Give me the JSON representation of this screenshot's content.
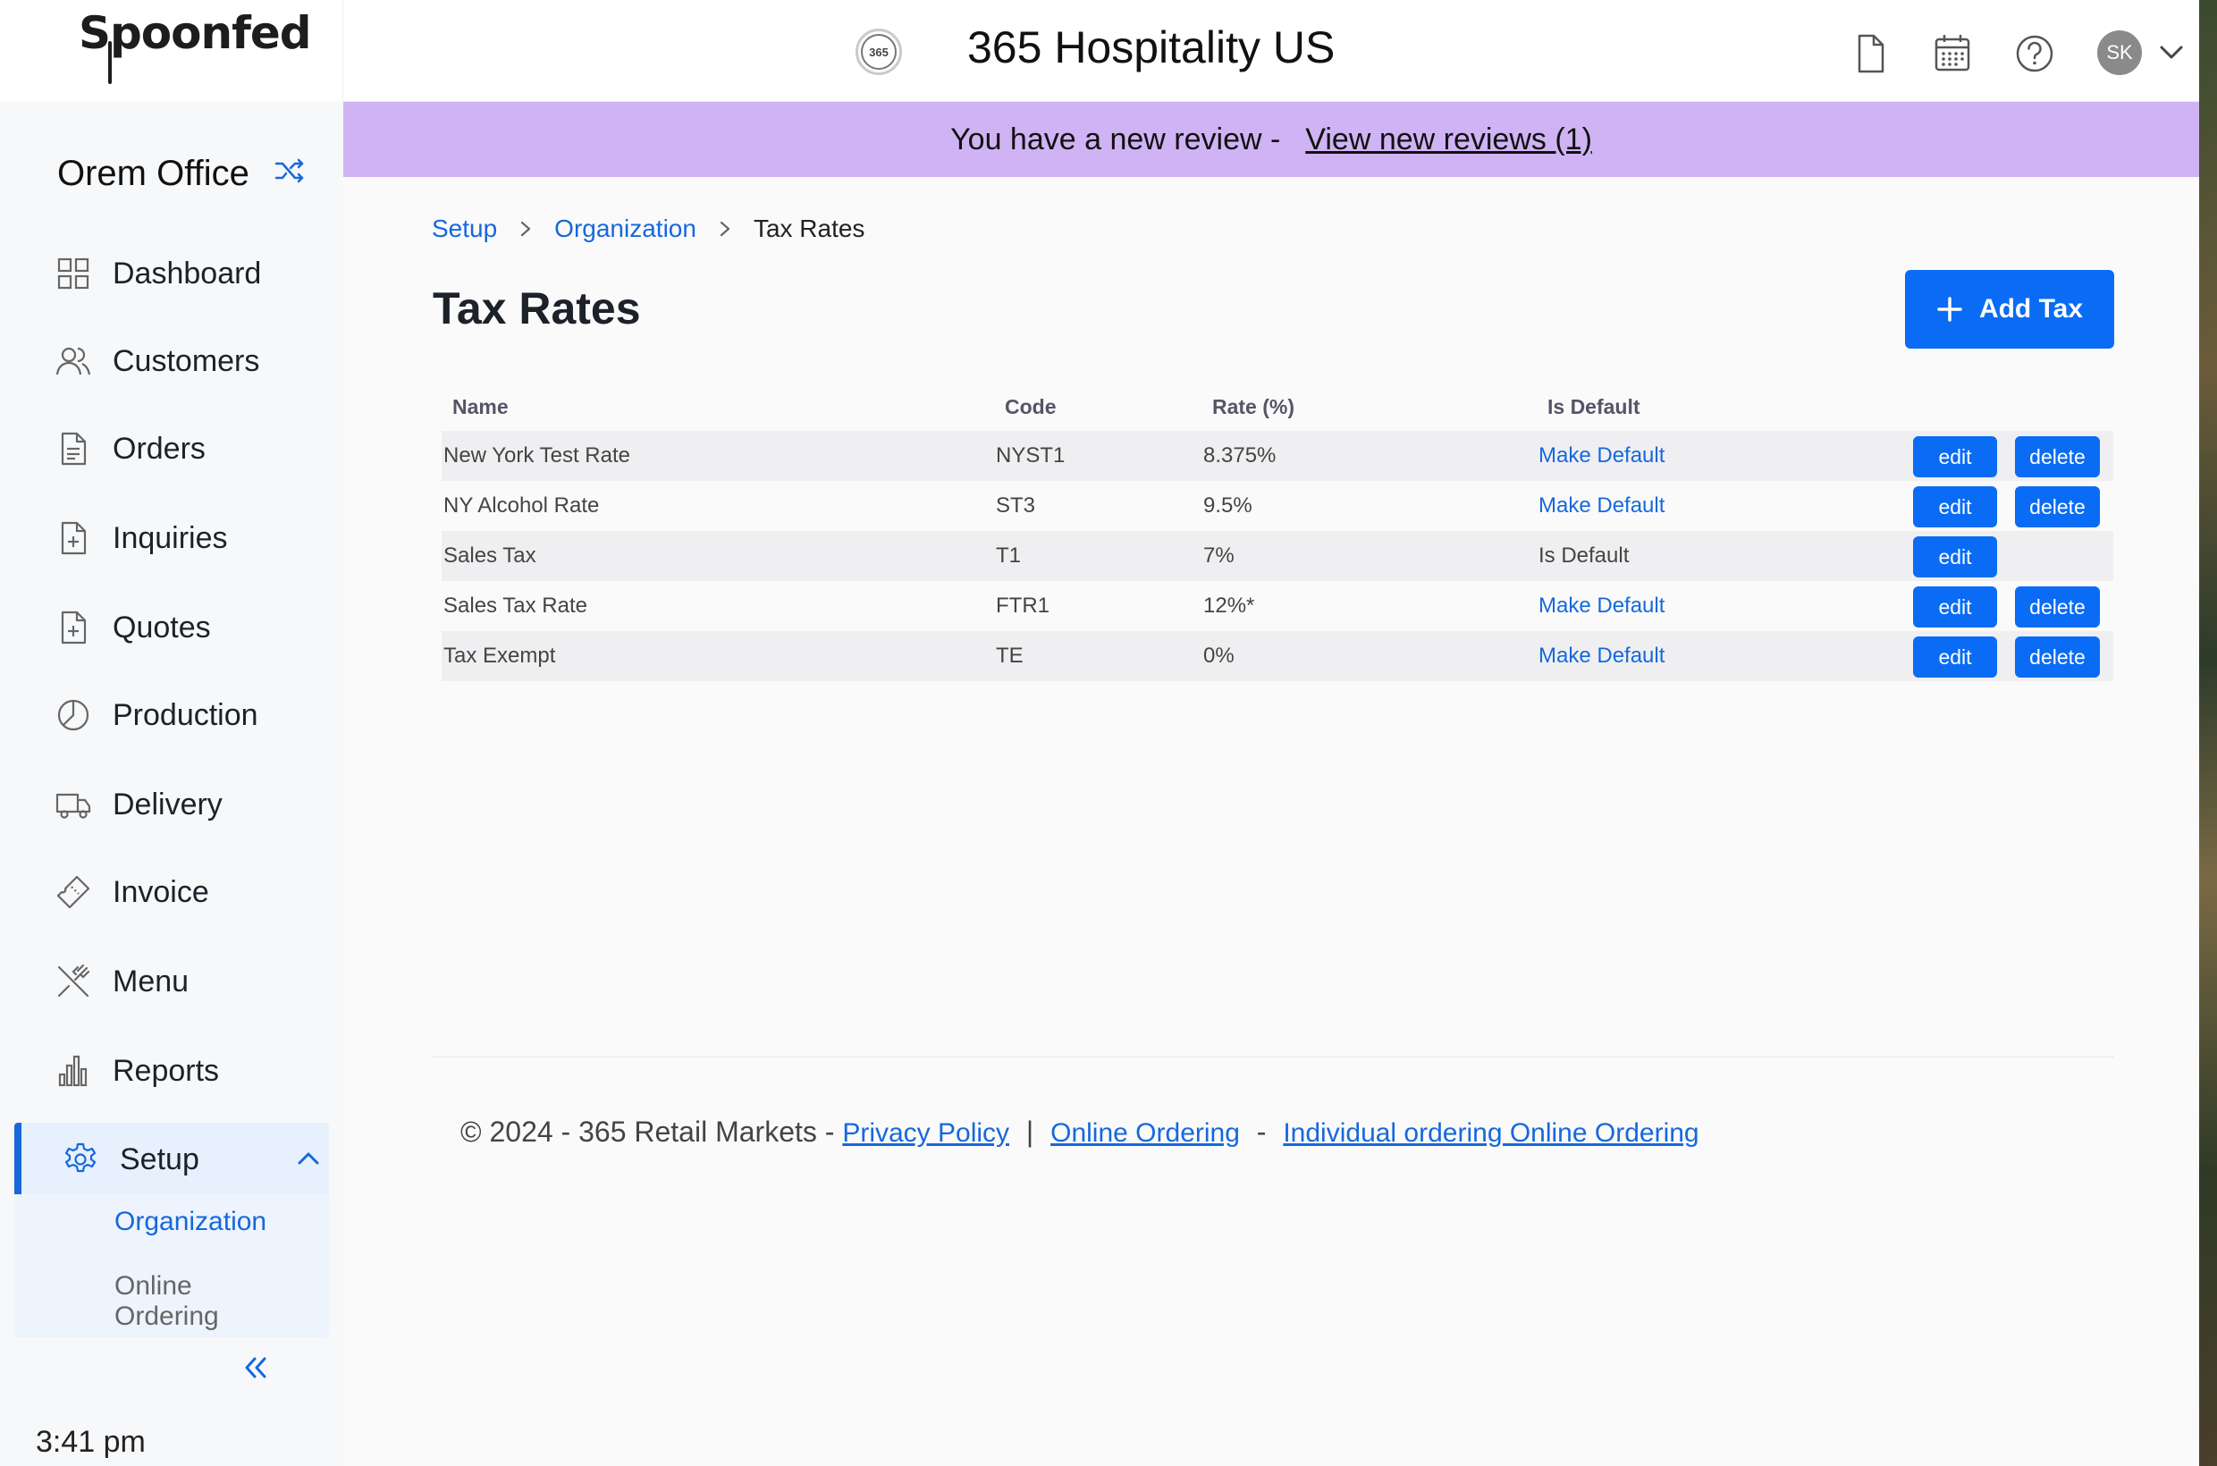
{
  "brand": {
    "logo_text": "Spoonfed"
  },
  "header": {
    "org_logo_text": "365",
    "org_name": "365 Hospitality US",
    "icons": [
      "document-icon",
      "calendar-icon",
      "help-icon"
    ],
    "avatar_initials": "SK"
  },
  "sidebar": {
    "office_name": "Orem Office",
    "items": [
      {
        "label": "Dashboard",
        "icon": "grid-icon"
      },
      {
        "label": "Customers",
        "icon": "users-icon"
      },
      {
        "label": "Orders",
        "icon": "document-icon"
      },
      {
        "label": "Inquiries",
        "icon": "file-plus-icon"
      },
      {
        "label": "Quotes",
        "icon": "file-plus-icon"
      },
      {
        "label": "Production",
        "icon": "pie-icon"
      },
      {
        "label": "Delivery",
        "icon": "truck-icon"
      },
      {
        "label": "Invoice",
        "icon": "ticket-icon"
      },
      {
        "label": "Menu",
        "icon": "utensils-icon"
      },
      {
        "label": "Reports",
        "icon": "bar-chart-icon"
      }
    ],
    "setup": {
      "label": "Setup",
      "sub_items": [
        "Organization",
        "Online Ordering"
      ]
    },
    "time": "3:41 pm"
  },
  "banner": {
    "text": "You have a new review -",
    "link": "View new reviews (1)"
  },
  "breadcrumb": [
    "Setup",
    "Organization",
    "Tax Rates"
  ],
  "page": {
    "title": "Tax Rates",
    "add_button": "Add Tax"
  },
  "table": {
    "headers": [
      "Name",
      "Code",
      "Rate (%)",
      "Is Default"
    ],
    "rows": [
      {
        "name": "New York Test Rate",
        "code": "NYST1",
        "rate": "8.375%",
        "default": "Make Default",
        "is_default": false
      },
      {
        "name": "NY Alcohol Rate",
        "code": "ST3",
        "rate": "9.5%",
        "default": "Make Default",
        "is_default": false
      },
      {
        "name": "Sales Tax",
        "code": "T1",
        "rate": "7%",
        "default": "Is Default",
        "is_default": true
      },
      {
        "name": "Sales Tax Rate",
        "code": "FTR1",
        "rate": "12%*",
        "default": "Make Default",
        "is_default": false
      },
      {
        "name": "Tax Exempt",
        "code": "TE",
        "rate": "0%",
        "default": "Make Default",
        "is_default": false
      }
    ],
    "edit_label": "edit",
    "delete_label": "delete"
  },
  "footer": {
    "copyright": "© 2024 - 365 Retail Markets -",
    "privacy": "Privacy Policy",
    "sep1": "|",
    "online_ordering": "Online Ordering",
    "sep2": "-",
    "individual": "Individual ordering Online Ordering"
  },
  "colors": {
    "accent": "#0a6cf5",
    "link": "#1668dc",
    "banner": "#cfb3f4",
    "sidebar_active": "#e7f0fd"
  }
}
